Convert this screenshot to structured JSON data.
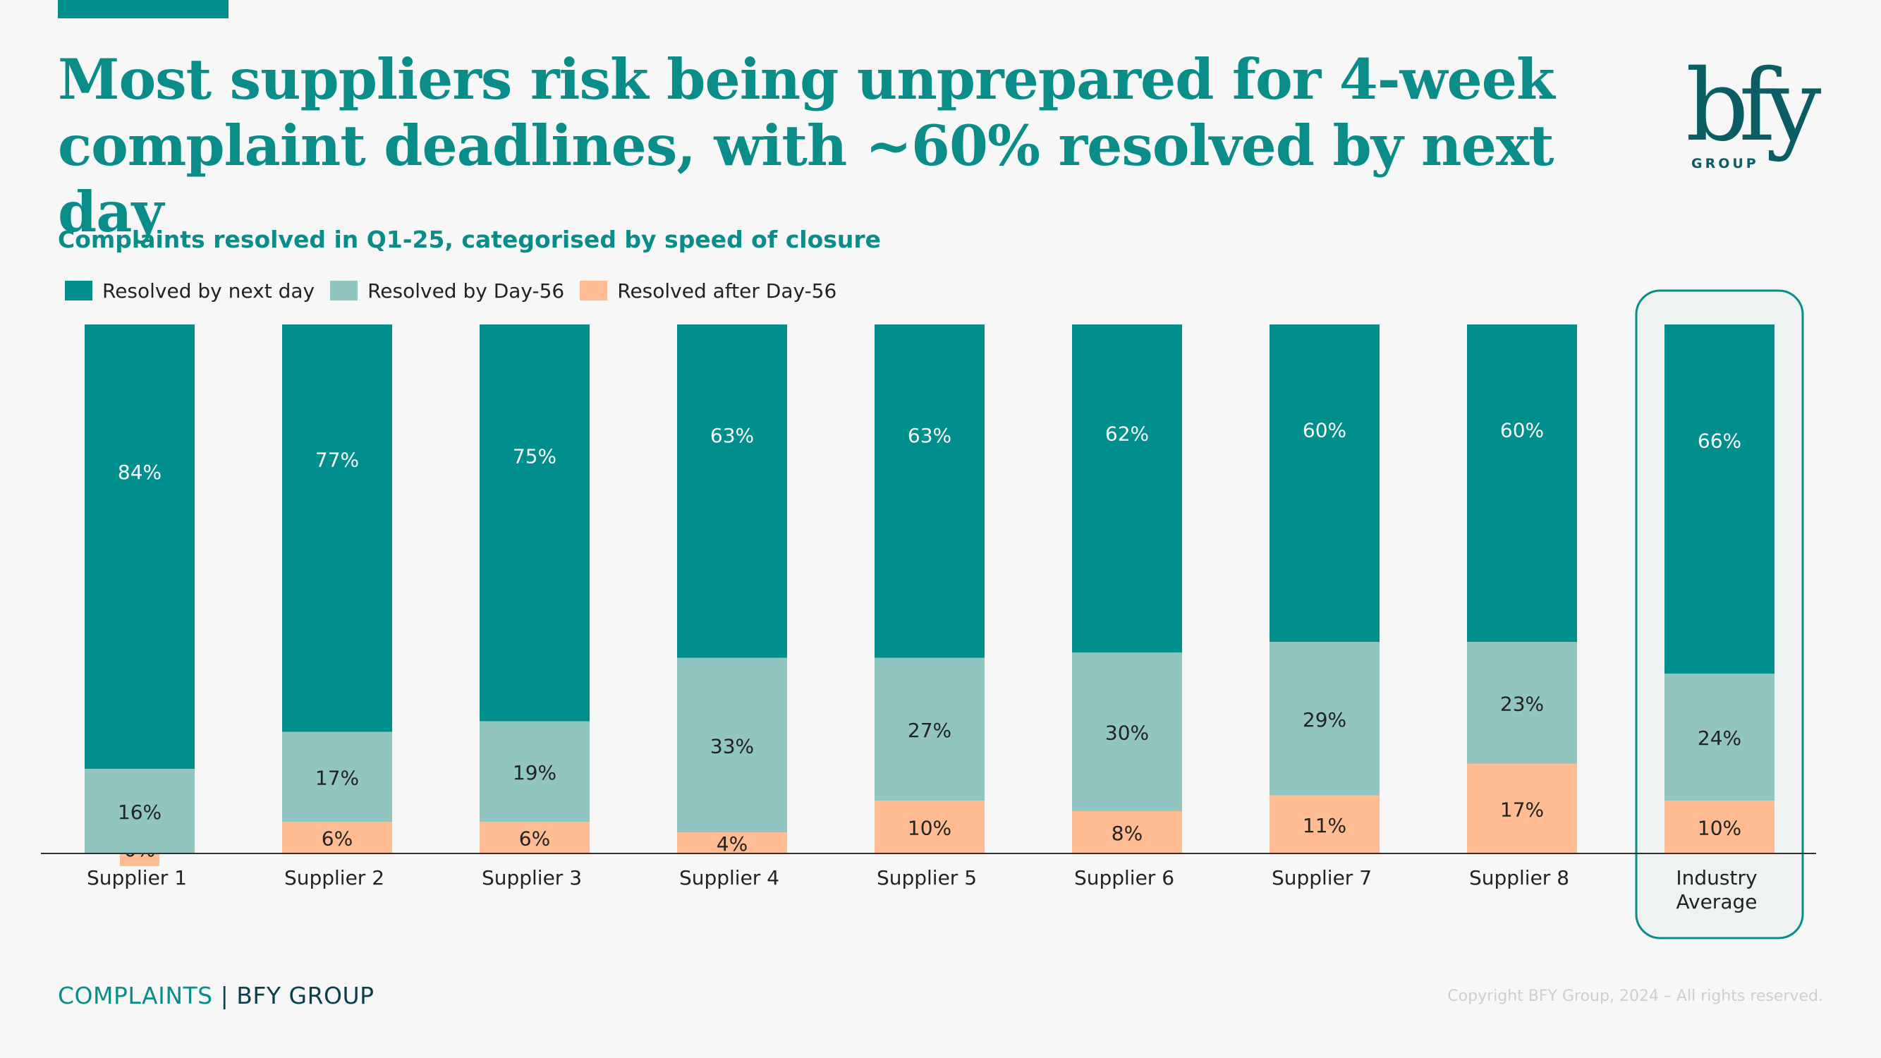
{
  "title": {
    "line1": "Most suppliers risk being unprepared for 4-week",
    "line2": "complaint deadlines, with ~60% resolved by next day"
  },
  "logo": {
    "text": "bfy",
    "subtext": "GROUP"
  },
  "footer": {
    "left": "COMPLAINTS",
    "separator": "|",
    "brand": "BFY GROUP",
    "copyright": "Copyright BFY Group, 2024 – All rights reserved."
  },
  "colors": {
    "next_day": "#008f8c",
    "day56": "#92c5bf",
    "after56": "#ffbb92",
    "accent": "#0a8d89"
  },
  "chart_data": {
    "type": "bar",
    "stacked": true,
    "title": "Complaints resolved in Q1-25, categorised by speed of closure",
    "legend_placement": "top-left",
    "categories": [
      "Supplier 1",
      "Supplier 2",
      "Supplier 3",
      "Supplier 4",
      "Supplier 5",
      "Supplier 6",
      "Supplier 7",
      "Supplier 8",
      "Industry Average"
    ],
    "highlighted_category": "Industry Average",
    "series": [
      {
        "name": "Resolved after Day-56",
        "values": [
          0,
          6,
          6,
          4,
          10,
          8,
          11,
          17,
          10
        ],
        "labels": [
          "0%",
          "6%",
          "6%",
          "4%",
          "10%",
          "8%",
          "11%",
          "17%",
          "10%"
        ]
      },
      {
        "name": "Resolved by Day-56",
        "values": [
          16,
          17,
          19,
          33,
          27,
          30,
          29,
          23,
          24
        ],
        "labels": [
          "16%",
          "17%",
          "19%",
          "33%",
          "27%",
          "30%",
          "29%",
          "23%",
          "24%"
        ]
      },
      {
        "name": "Resolved by next day",
        "values": [
          84,
          77,
          75,
          63,
          63,
          62,
          60,
          60,
          66
        ],
        "labels": [
          "84%",
          "77%",
          "75%",
          "63%",
          "63%",
          "62%",
          "60%",
          "60%",
          "66%"
        ]
      }
    ],
    "legend_order": [
      "Resolved by next day",
      "Resolved by Day-56",
      "Resolved after Day-56"
    ],
    "ylim": [
      0,
      100
    ],
    "grid": false,
    "xlabel": "",
    "ylabel": ""
  }
}
